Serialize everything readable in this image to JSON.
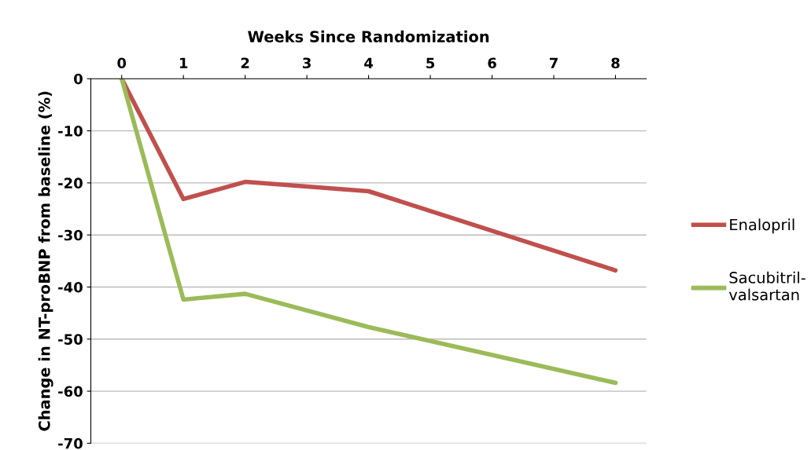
{
  "chart_data": {
    "type": "line",
    "xlabel": "Weeks Since Randomization",
    "ylabel": "Change in NT-proBNP from baseline (%)",
    "x": [
      0,
      1,
      2,
      4,
      8
    ],
    "series": [
      {
        "name": "Enalopril",
        "color": "#c0504d",
        "values": [
          0,
          -23.1,
          -19.8,
          -21.6,
          -36.8
        ]
      },
      {
        "name": "Sacubitril-\nvalsartan",
        "color": "#9bbb59",
        "values": [
          0,
          -42.4,
          -41.3,
          -47.7,
          -58.4
        ]
      }
    ],
    "xlim": [
      -0.5,
      8.5
    ],
    "xticks": [
      0,
      1,
      2,
      3,
      4,
      5,
      6,
      7,
      8
    ],
    "ylim": [
      -70,
      0
    ],
    "yticks": [
      0,
      -10,
      -20,
      -30,
      -40,
      -50,
      -60,
      -70
    ],
    "grid": "y",
    "legend": "right",
    "marker": "none",
    "line_style": "solid"
  }
}
